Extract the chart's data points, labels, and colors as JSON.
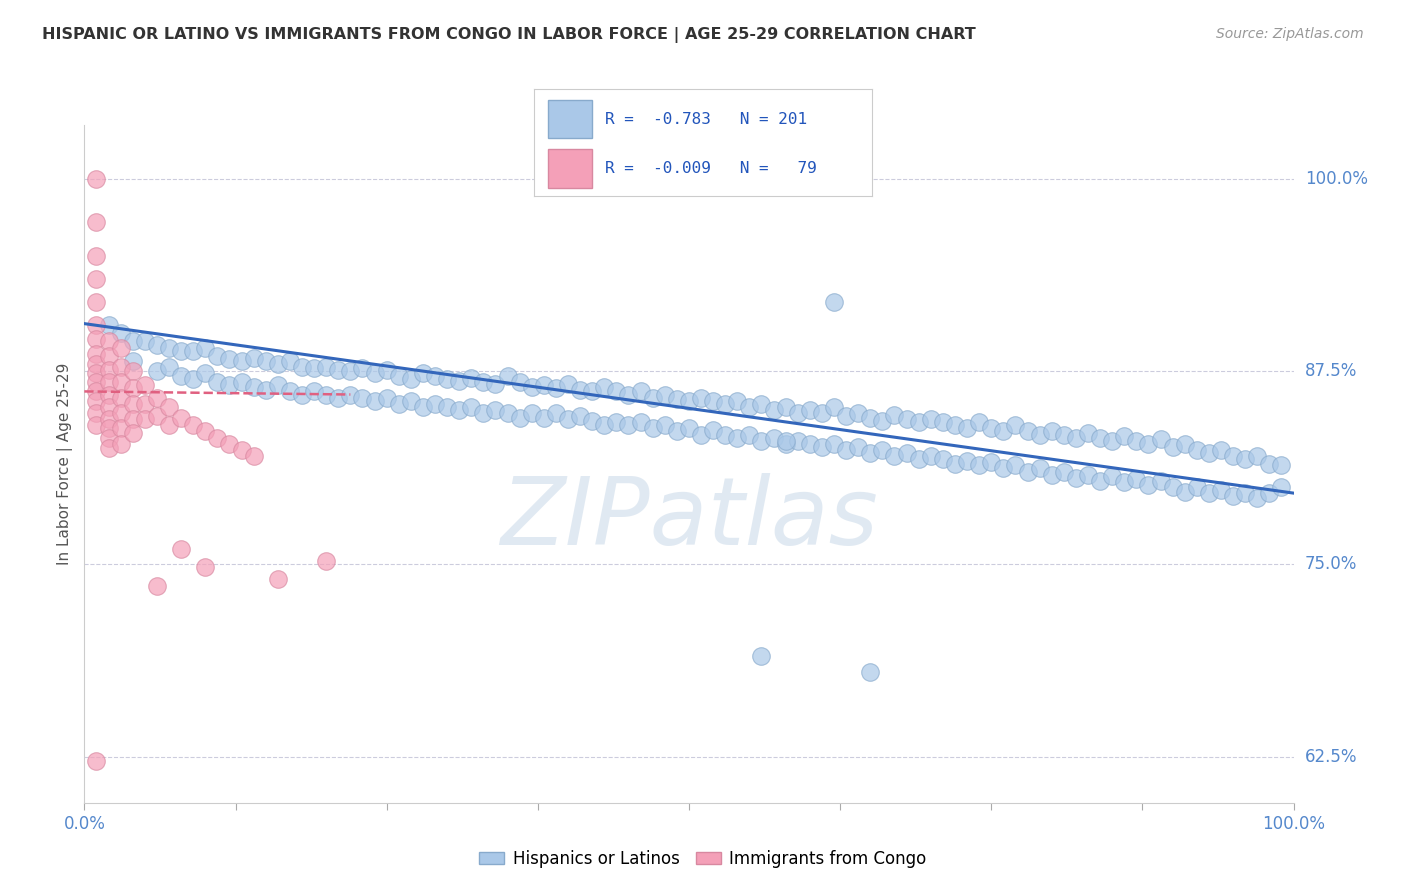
{
  "title": "HISPANIC OR LATINO VS IMMIGRANTS FROM CONGO IN LABOR FORCE | AGE 25-29 CORRELATION CHART",
  "source": "Source: ZipAtlas.com",
  "ylabel": "In Labor Force | Age 25-29",
  "xlim": [
    0.0,
    1.0
  ],
  "ylim": [
    0.595,
    1.035
  ],
  "yticks": [
    0.625,
    0.75,
    0.875,
    1.0
  ],
  "ytick_labels": [
    "62.5%",
    "75.0%",
    "87.5%",
    "100.0%"
  ],
  "xticks": [
    0.0,
    0.125,
    0.25,
    0.375,
    0.5,
    0.625,
    0.75,
    0.875,
    1.0
  ],
  "xtick_labels_show": [
    "0.0%",
    "",
    "",
    "",
    "",
    "",
    "",
    "",
    "100.0%"
  ],
  "legend_r_blue": "-0.783",
  "legend_n_blue": "201",
  "legend_r_pink": "-0.009",
  "legend_n_pink": " 79",
  "blue_color": "#aac8e8",
  "blue_edge_color": "#88aacc",
  "pink_color": "#f4a0b8",
  "pink_edge_color": "#d888a0",
  "blue_line_color": "#3366bb",
  "pink_line_color": "#e06080",
  "watermark_text": "ZIPatlas",
  "background_color": "#ffffff",
  "grid_color": "#ccccdd",
  "blue_trendline": [
    [
      0.0,
      0.906
    ],
    [
      1.0,
      0.796
    ]
  ],
  "pink_trendline": [
    [
      0.0,
      0.862
    ],
    [
      0.22,
      0.86
    ]
  ],
  "blue_scatter": [
    [
      0.02,
      0.905
    ],
    [
      0.03,
      0.9
    ],
    [
      0.04,
      0.895
    ],
    [
      0.05,
      0.895
    ],
    [
      0.06,
      0.892
    ],
    [
      0.07,
      0.89
    ],
    [
      0.08,
      0.888
    ],
    [
      0.09,
      0.888
    ],
    [
      0.1,
      0.89
    ],
    [
      0.11,
      0.885
    ],
    [
      0.12,
      0.883
    ],
    [
      0.13,
      0.882
    ],
    [
      0.14,
      0.884
    ],
    [
      0.15,
      0.882
    ],
    [
      0.16,
      0.88
    ],
    [
      0.17,
      0.882
    ],
    [
      0.18,
      0.878
    ],
    [
      0.19,
      0.877
    ],
    [
      0.2,
      0.878
    ],
    [
      0.21,
      0.876
    ],
    [
      0.22,
      0.875
    ],
    [
      0.23,
      0.877
    ],
    [
      0.24,
      0.874
    ],
    [
      0.25,
      0.876
    ],
    [
      0.26,
      0.872
    ],
    [
      0.27,
      0.87
    ],
    [
      0.28,
      0.874
    ],
    [
      0.29,
      0.872
    ],
    [
      0.3,
      0.87
    ],
    [
      0.31,
      0.869
    ],
    [
      0.32,
      0.871
    ],
    [
      0.33,
      0.868
    ],
    [
      0.34,
      0.867
    ],
    [
      0.35,
      0.872
    ],
    [
      0.36,
      0.868
    ],
    [
      0.37,
      0.865
    ],
    [
      0.38,
      0.866
    ],
    [
      0.39,
      0.864
    ],
    [
      0.4,
      0.867
    ],
    [
      0.41,
      0.863
    ],
    [
      0.42,
      0.862
    ],
    [
      0.43,
      0.865
    ],
    [
      0.44,
      0.862
    ],
    [
      0.45,
      0.86
    ],
    [
      0.46,
      0.862
    ],
    [
      0.47,
      0.858
    ],
    [
      0.48,
      0.86
    ],
    [
      0.49,
      0.857
    ],
    [
      0.5,
      0.856
    ],
    [
      0.51,
      0.858
    ],
    [
      0.52,
      0.856
    ],
    [
      0.53,
      0.854
    ],
    [
      0.54,
      0.856
    ],
    [
      0.55,
      0.852
    ],
    [
      0.56,
      0.854
    ],
    [
      0.57,
      0.85
    ],
    [
      0.58,
      0.852
    ],
    [
      0.59,
      0.848
    ],
    [
      0.6,
      0.85
    ],
    [
      0.61,
      0.848
    ],
    [
      0.62,
      0.852
    ],
    [
      0.63,
      0.846
    ],
    [
      0.64,
      0.848
    ],
    [
      0.65,
      0.845
    ],
    [
      0.66,
      0.843
    ],
    [
      0.67,
      0.847
    ],
    [
      0.68,
      0.844
    ],
    [
      0.69,
      0.842
    ],
    [
      0.7,
      0.844
    ],
    [
      0.71,
      0.842
    ],
    [
      0.72,
      0.84
    ],
    [
      0.73,
      0.838
    ],
    [
      0.74,
      0.842
    ],
    [
      0.75,
      0.838
    ],
    [
      0.76,
      0.836
    ],
    [
      0.77,
      0.84
    ],
    [
      0.78,
      0.836
    ],
    [
      0.79,
      0.834
    ],
    [
      0.8,
      0.836
    ],
    [
      0.81,
      0.834
    ],
    [
      0.82,
      0.832
    ],
    [
      0.83,
      0.835
    ],
    [
      0.84,
      0.832
    ],
    [
      0.85,
      0.83
    ],
    [
      0.86,
      0.833
    ],
    [
      0.87,
      0.83
    ],
    [
      0.88,
      0.828
    ],
    [
      0.89,
      0.831
    ],
    [
      0.9,
      0.826
    ],
    [
      0.91,
      0.828
    ],
    [
      0.92,
      0.824
    ],
    [
      0.93,
      0.822
    ],
    [
      0.94,
      0.824
    ],
    [
      0.95,
      0.82
    ],
    [
      0.96,
      0.818
    ],
    [
      0.97,
      0.82
    ],
    [
      0.98,
      0.815
    ],
    [
      0.99,
      0.814
    ],
    [
      0.04,
      0.882
    ],
    [
      0.06,
      0.875
    ],
    [
      0.07,
      0.878
    ],
    [
      0.08,
      0.872
    ],
    [
      0.09,
      0.87
    ],
    [
      0.1,
      0.874
    ],
    [
      0.11,
      0.868
    ],
    [
      0.12,
      0.866
    ],
    [
      0.13,
      0.868
    ],
    [
      0.14,
      0.865
    ],
    [
      0.15,
      0.863
    ],
    [
      0.16,
      0.866
    ],
    [
      0.17,
      0.862
    ],
    [
      0.18,
      0.86
    ],
    [
      0.19,
      0.862
    ],
    [
      0.2,
      0.86
    ],
    [
      0.21,
      0.858
    ],
    [
      0.22,
      0.86
    ],
    [
      0.23,
      0.858
    ],
    [
      0.24,
      0.856
    ],
    [
      0.25,
      0.858
    ],
    [
      0.26,
      0.854
    ],
    [
      0.27,
      0.856
    ],
    [
      0.28,
      0.852
    ],
    [
      0.29,
      0.854
    ],
    [
      0.3,
      0.852
    ],
    [
      0.31,
      0.85
    ],
    [
      0.32,
      0.852
    ],
    [
      0.33,
      0.848
    ],
    [
      0.34,
      0.85
    ],
    [
      0.35,
      0.848
    ],
    [
      0.36,
      0.845
    ],
    [
      0.37,
      0.848
    ],
    [
      0.38,
      0.845
    ],
    [
      0.39,
      0.848
    ],
    [
      0.4,
      0.844
    ],
    [
      0.41,
      0.846
    ],
    [
      0.42,
      0.843
    ],
    [
      0.43,
      0.84
    ],
    [
      0.44,
      0.842
    ],
    [
      0.45,
      0.84
    ],
    [
      0.46,
      0.842
    ],
    [
      0.47,
      0.838
    ],
    [
      0.48,
      0.84
    ],
    [
      0.49,
      0.836
    ],
    [
      0.5,
      0.838
    ],
    [
      0.51,
      0.834
    ],
    [
      0.52,
      0.837
    ],
    [
      0.53,
      0.834
    ],
    [
      0.54,
      0.832
    ],
    [
      0.55,
      0.834
    ],
    [
      0.56,
      0.83
    ],
    [
      0.57,
      0.832
    ],
    [
      0.58,
      0.828
    ],
    [
      0.59,
      0.83
    ],
    [
      0.6,
      0.828
    ],
    [
      0.61,
      0.826
    ],
    [
      0.62,
      0.828
    ],
    [
      0.63,
      0.824
    ],
    [
      0.64,
      0.826
    ],
    [
      0.65,
      0.822
    ],
    [
      0.66,
      0.824
    ],
    [
      0.67,
      0.82
    ],
    [
      0.68,
      0.822
    ],
    [
      0.69,
      0.818
    ],
    [
      0.7,
      0.82
    ],
    [
      0.71,
      0.818
    ],
    [
      0.72,
      0.815
    ],
    [
      0.73,
      0.817
    ],
    [
      0.74,
      0.814
    ],
    [
      0.75,
      0.816
    ],
    [
      0.76,
      0.812
    ],
    [
      0.77,
      0.814
    ],
    [
      0.78,
      0.81
    ],
    [
      0.79,
      0.812
    ],
    [
      0.8,
      0.808
    ],
    [
      0.81,
      0.81
    ],
    [
      0.82,
      0.806
    ],
    [
      0.83,
      0.808
    ],
    [
      0.84,
      0.804
    ],
    [
      0.85,
      0.807
    ],
    [
      0.86,
      0.803
    ],
    [
      0.87,
      0.805
    ],
    [
      0.88,
      0.801
    ],
    [
      0.89,
      0.804
    ],
    [
      0.9,
      0.8
    ],
    [
      0.91,
      0.797
    ],
    [
      0.92,
      0.8
    ],
    [
      0.93,
      0.796
    ],
    [
      0.94,
      0.798
    ],
    [
      0.95,
      0.794
    ],
    [
      0.96,
      0.796
    ],
    [
      0.97,
      0.793
    ],
    [
      0.98,
      0.796
    ],
    [
      0.99,
      0.8
    ],
    [
      0.56,
      0.69
    ],
    [
      0.65,
      0.68
    ],
    [
      0.58,
      0.83
    ],
    [
      0.62,
      0.92
    ]
  ],
  "pink_scatter": [
    [
      0.01,
      1.0
    ],
    [
      0.01,
      0.972
    ],
    [
      0.01,
      0.95
    ],
    [
      0.01,
      0.935
    ],
    [
      0.01,
      0.92
    ],
    [
      0.01,
      0.905
    ],
    [
      0.01,
      0.896
    ],
    [
      0.01,
      0.886
    ],
    [
      0.01,
      0.88
    ],
    [
      0.01,
      0.874
    ],
    [
      0.01,
      0.868
    ],
    [
      0.01,
      0.862
    ],
    [
      0.01,
      0.856
    ],
    [
      0.01,
      0.848
    ],
    [
      0.01,
      0.84
    ],
    [
      0.02,
      0.895
    ],
    [
      0.02,
      0.885
    ],
    [
      0.02,
      0.876
    ],
    [
      0.02,
      0.868
    ],
    [
      0.02,
      0.86
    ],
    [
      0.02,
      0.852
    ],
    [
      0.02,
      0.844
    ],
    [
      0.02,
      0.838
    ],
    [
      0.02,
      0.832
    ],
    [
      0.02,
      0.825
    ],
    [
      0.03,
      0.89
    ],
    [
      0.03,
      0.878
    ],
    [
      0.03,
      0.868
    ],
    [
      0.03,
      0.858
    ],
    [
      0.03,
      0.848
    ],
    [
      0.03,
      0.838
    ],
    [
      0.03,
      0.828
    ],
    [
      0.04,
      0.875
    ],
    [
      0.04,
      0.864
    ],
    [
      0.04,
      0.854
    ],
    [
      0.04,
      0.844
    ],
    [
      0.04,
      0.835
    ],
    [
      0.05,
      0.866
    ],
    [
      0.05,
      0.854
    ],
    [
      0.05,
      0.844
    ],
    [
      0.06,
      0.858
    ],
    [
      0.06,
      0.846
    ],
    [
      0.07,
      0.852
    ],
    [
      0.07,
      0.84
    ],
    [
      0.08,
      0.845
    ],
    [
      0.09,
      0.84
    ],
    [
      0.1,
      0.836
    ],
    [
      0.11,
      0.832
    ],
    [
      0.12,
      0.828
    ],
    [
      0.13,
      0.824
    ],
    [
      0.14,
      0.82
    ],
    [
      0.06,
      0.736
    ],
    [
      0.08,
      0.76
    ],
    [
      0.1,
      0.748
    ],
    [
      0.16,
      0.74
    ],
    [
      0.2,
      0.752
    ],
    [
      0.01,
      0.622
    ]
  ]
}
